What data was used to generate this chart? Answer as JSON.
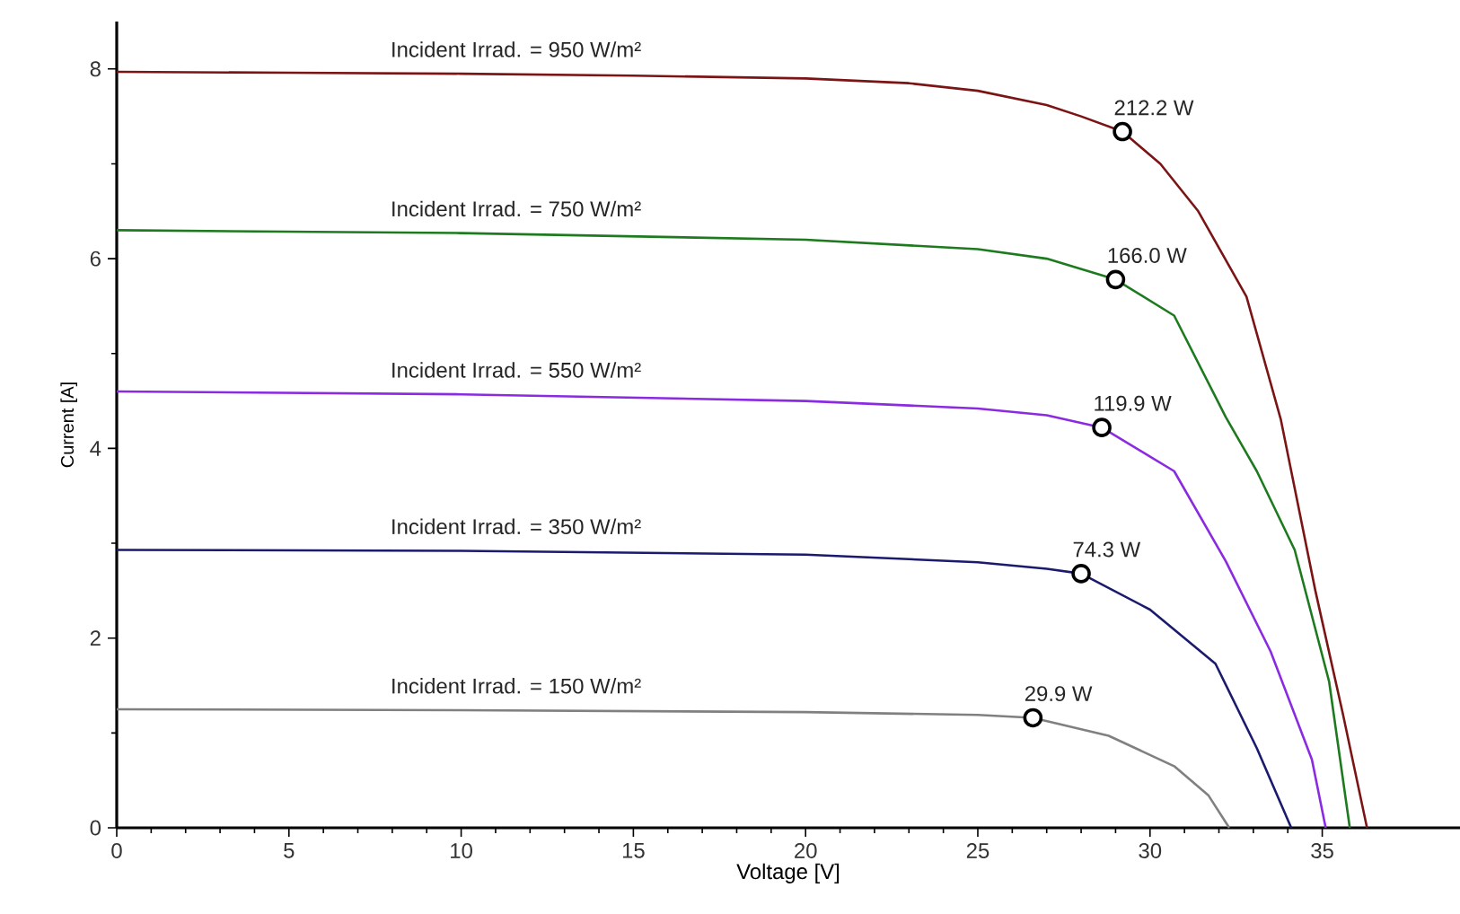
{
  "chart_data": {
    "type": "line",
    "xlabel": "Voltage [V]",
    "ylabel": "Current [A]",
    "xlim": [
      0,
      39
    ],
    "ylim": [
      0,
      8.5
    ],
    "xticks": [
      0,
      5,
      10,
      15,
      20,
      25,
      30,
      35
    ],
    "yticks": [
      0,
      2,
      4,
      6,
      8
    ],
    "marker": "none",
    "line_style": "solid",
    "series": [
      {
        "color": "#7b1414",
        "x": [
          0,
          5,
          10,
          15,
          20,
          23,
          25,
          27,
          28,
          29.2,
          30.3,
          31.4,
          32.8,
          33.8,
          34.8,
          35.6,
          36.3
        ],
        "values": [
          7.97,
          7.96,
          7.95,
          7.93,
          7.9,
          7.85,
          7.77,
          7.62,
          7.5,
          7.34,
          7.0,
          6.5,
          5.6,
          4.3,
          2.5,
          1.2,
          0
        ]
      },
      {
        "color": "#1e7a1e",
        "x": [
          0,
          10,
          20,
          25,
          27,
          29.0,
          30.7,
          32.2,
          33.1,
          34.2,
          35.2,
          35.8
        ],
        "values": [
          6.3,
          6.27,
          6.2,
          6.1,
          6.0,
          5.78,
          5.4,
          4.33,
          3.76,
          2.93,
          1.54,
          0
        ]
      },
      {
        "color": "#8a2be2",
        "x": [
          0,
          10,
          20,
          25,
          27,
          28.6,
          30.7,
          32.2,
          33.5,
          34.7,
          35.1
        ],
        "values": [
          4.6,
          4.57,
          4.5,
          4.42,
          4.35,
          4.22,
          3.76,
          2.81,
          1.86,
          0.72,
          0
        ]
      },
      {
        "color": "#1a1a6e",
        "x": [
          0,
          10,
          20,
          25,
          27,
          28.0,
          30.0,
          31.9,
          33.1,
          34.1
        ],
        "values": [
          2.93,
          2.92,
          2.88,
          2.8,
          2.73,
          2.68,
          2.3,
          1.73,
          0.84,
          0
        ]
      },
      {
        "color": "#808080",
        "x": [
          0,
          10,
          20,
          25,
          26.6,
          28.8,
          30.7,
          31.7,
          32.3
        ],
        "values": [
          1.25,
          1.24,
          1.22,
          1.19,
          1.16,
          0.97,
          0.65,
          0.34,
          0
        ]
      },
      {
        "type": "scatter",
        "marker": "circle",
        "color": "#000000",
        "x": [
          29.2,
          29.0,
          28.6,
          28.0,
          26.6
        ],
        "values": [
          7.34,
          5.78,
          4.22,
          2.68,
          1.16
        ]
      }
    ],
    "annotations": [
      {
        "text": "Incident Irrad. = 950 W/m²",
        "x": 8.2,
        "y": 7.95
      },
      {
        "text": "Incident Irrad. = 750 W/m²",
        "x": 8.2,
        "y": 6.27
      },
      {
        "text": "Incident Irrad. = 550 W/m²",
        "x": 8.2,
        "y": 4.57
      },
      {
        "text": "Incident Irrad. = 350 W/m²",
        "x": 8.2,
        "y": 2.92
      },
      {
        "text": "Incident Irrad. = 150 W/m²",
        "x": 8.2,
        "y": 1.24
      },
      {
        "text": "212.2 W",
        "x": 29.2,
        "y": 7.34
      },
      {
        "text": "166.0 W",
        "x": 29.0,
        "y": 5.78
      },
      {
        "text": "119.9 W",
        "x": 28.6,
        "y": 4.22
      },
      {
        "text": "74.3 W",
        "x": 28.0,
        "y": 2.68
      },
      {
        "text": "29.9 W",
        "x": 26.6,
        "y": 1.16
      }
    ]
  }
}
